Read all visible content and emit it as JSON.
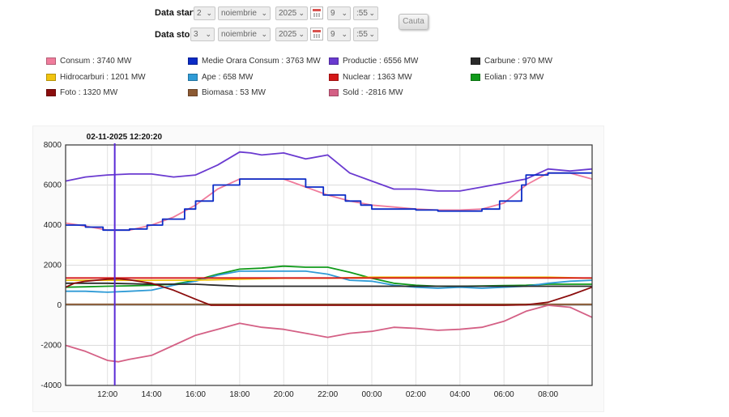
{
  "form": {
    "start_label": "Data start",
    "stop_label": "Data stop",
    "start": {
      "day": "2",
      "month": "noiembrie",
      "year": "2025",
      "hour": "9",
      "minute": ":55"
    },
    "stop": {
      "day": "3",
      "month": "noiembrie",
      "year": "2025",
      "hour": "9",
      "minute": ":55"
    },
    "search_button": "Cauta"
  },
  "legend": [
    {
      "label": "Consum : 3740 MW",
      "color": "#f07c9c"
    },
    {
      "label": "Medie Orara Consum : 3763 MW",
      "color": "#0b2bc6"
    },
    {
      "label": "Productie : 6556 MW",
      "color": "#6a3ad0"
    },
    {
      "label": "Carbune : 970 MW",
      "color": "#2a2a2a"
    },
    {
      "label": "Hidrocarburi : 1201 MW",
      "color": "#f1c40f"
    },
    {
      "label": "Ape : 658 MW",
      "color": "#2f9bd6"
    },
    {
      "label": "Nuclear : 1363 MW",
      "color": "#d41818"
    },
    {
      "label": "Eolian : 973 MW",
      "color": "#109a1a"
    },
    {
      "label": "Foto : 1320 MW",
      "color": "#8b0d0d"
    },
    {
      "label": "Biomasa : 53 MW",
      "color": "#8c5a33"
    },
    {
      "label": "Sold : -2816 MW",
      "color": "#d46085"
    }
  ],
  "chart_data": {
    "type": "line",
    "cursor_label": "02-11-2025 12:20:20",
    "cursor_x": 12.33,
    "xlim": [
      10.1,
      34.0
    ],
    "ylim": [
      -4000,
      8000
    ],
    "yticks": [
      -4000,
      -2000,
      0,
      2000,
      4000,
      6000,
      8000
    ],
    "xticks": [
      {
        "v": 12,
        "label": "12:00"
      },
      {
        "v": 14,
        "label": "14:00"
      },
      {
        "v": 16,
        "label": "16:00"
      },
      {
        "v": 18,
        "label": "18:00"
      },
      {
        "v": 20,
        "label": "20:00"
      },
      {
        "v": 22,
        "label": "22:00"
      },
      {
        "v": 24,
        "label": "00:00"
      },
      {
        "v": 26,
        "label": "02:00"
      },
      {
        "v": 28,
        "label": "04:00"
      },
      {
        "v": 30,
        "label": "06:00"
      },
      {
        "v": 32,
        "label": "08:00"
      }
    ],
    "series": [
      {
        "name": "Eolian",
        "color": "#109a1a",
        "x": [
          10.1,
          11,
          12,
          13,
          14,
          15,
          16,
          17,
          18,
          19,
          20,
          21,
          22,
          23,
          24,
          25,
          26,
          27,
          28,
          29,
          30,
          31,
          32,
          33,
          34
        ],
        "y": [
          900,
          920,
          950,
          970,
          1000,
          1050,
          1250,
          1550,
          1800,
          1850,
          1950,
          1900,
          1900,
          1650,
          1350,
          1100,
          1000,
          950,
          950,
          960,
          980,
          1000,
          1050,
          1050,
          1050
        ]
      },
      {
        "name": "Ape",
        "color": "#2f9bd6",
        "x": [
          10.1,
          11,
          12,
          13,
          14,
          15,
          16,
          17,
          18,
          19,
          20,
          21,
          22,
          23,
          24,
          25,
          26,
          27,
          28,
          29,
          30,
          31,
          32,
          33,
          34
        ],
        "y": [
          700,
          700,
          650,
          700,
          750,
          1000,
          1200,
          1500,
          1700,
          1700,
          1700,
          1700,
          1550,
          1250,
          1200,
          1000,
          900,
          850,
          900,
          850,
          900,
          950,
          1100,
          1200,
          1250
        ]
      },
      {
        "name": "Hidrocarburi",
        "color": "#f1c40f",
        "x": [
          10.1,
          12,
          14,
          16,
          18,
          20,
          22,
          24,
          26,
          28,
          30,
          32,
          34
        ],
        "y": [
          1250,
          1250,
          1250,
          1250,
          1300,
          1350,
          1350,
          1400,
          1400,
          1400,
          1400,
          1400,
          1350
        ]
      },
      {
        "name": "Carbune",
        "color": "#2a2a2a",
        "x": [
          10.1,
          12,
          14,
          16,
          17,
          18,
          20,
          22,
          24,
          26,
          28,
          30,
          32,
          34
        ],
        "y": [
          1100,
          1100,
          1050,
          1050,
          1000,
          950,
          950,
          950,
          950,
          950,
          950,
          950,
          950,
          950
        ]
      },
      {
        "name": "Nuclear",
        "color": "#d41818",
        "x": [
          10.1,
          34
        ],
        "y": [
          1360,
          1360
        ]
      },
      {
        "name": "Biomasa",
        "color": "#8c5a33",
        "x": [
          10.1,
          34
        ],
        "y": [
          50,
          50
        ]
      },
      {
        "name": "Foto",
        "color": "#8b0d0d",
        "x": [
          10.1,
          10.5,
          11,
          12,
          12.5,
          13,
          14,
          15,
          16,
          16.7,
          18,
          20,
          22,
          24,
          26,
          28,
          30,
          31,
          32,
          33,
          34
        ],
        "y": [
          900,
          1100,
          1200,
          1300,
          1320,
          1270,
          1100,
          750,
          300,
          0,
          0,
          0,
          0,
          0,
          0,
          0,
          0,
          20,
          150,
          500,
          900
        ]
      },
      {
        "name": "Sold",
        "color": "#d46085",
        "x": [
          10.1,
          11,
          12,
          12.5,
          13,
          14,
          15,
          16,
          17,
          18,
          19,
          20,
          21,
          22,
          23,
          24,
          25,
          26,
          27,
          28,
          29,
          30,
          31,
          32,
          33,
          34
        ],
        "y": [
          -2000,
          -2300,
          -2750,
          -2820,
          -2700,
          -2500,
          -2000,
          -1500,
          -1200,
          -900,
          -1100,
          -1200,
          -1400,
          -1600,
          -1400,
          -1300,
          -1100,
          -1150,
          -1250,
          -1200,
          -1100,
          -800,
          -300,
          0,
          -100,
          -600
        ]
      },
      {
        "name": "Productie",
        "color": "#6a3ad0",
        "x": [
          10.1,
          11,
          12,
          13,
          14,
          15,
          16,
          17,
          18,
          18.5,
          19,
          20,
          21,
          22,
          23,
          24,
          25,
          26,
          27,
          28,
          29,
          30,
          31,
          32,
          33,
          34
        ],
        "y": [
          6200,
          6400,
          6500,
          6550,
          6550,
          6400,
          6500,
          7000,
          7650,
          7600,
          7500,
          7600,
          7300,
          7500,
          6600,
          6200,
          5800,
          5800,
          5700,
          5700,
          5900,
          6100,
          6300,
          6800,
          6700,
          6800
        ]
      },
      {
        "name": "Consum",
        "color": "#f07c9c",
        "x": [
          10.1,
          11,
          12,
          13,
          14,
          15,
          16,
          17,
          18,
          19,
          20,
          21,
          22,
          23,
          24,
          25,
          26,
          27,
          28,
          29,
          30,
          31,
          32,
          33,
          34
        ],
        "y": [
          4100,
          3950,
          3750,
          3750,
          4000,
          4400,
          5000,
          5800,
          6300,
          6300,
          6300,
          5900,
          5500,
          5200,
          5000,
          4900,
          4800,
          4750,
          4750,
          4800,
          5100,
          6000,
          6600,
          6600,
          6300
        ]
      },
      {
        "name": "Medie Orara Consum",
        "color": "#0b2bc6",
        "step": true,
        "x": [
          10.1,
          11,
          11.8,
          13,
          13.8,
          14.5,
          15.5,
          16,
          16.8,
          18,
          19,
          21,
          21.8,
          22.8,
          23.5,
          24,
          25,
          26,
          27,
          28,
          29,
          29.8,
          30.8,
          31,
          32,
          33,
          34
        ],
        "y": [
          4000,
          3900,
          3750,
          3800,
          4000,
          4300,
          4800,
          5200,
          6000,
          6300,
          6300,
          5900,
          5500,
          5200,
          5000,
          4800,
          4800,
          4750,
          4700,
          4700,
          4800,
          5200,
          6000,
          6500,
          6600,
          6600,
          6600
        ]
      }
    ]
  }
}
